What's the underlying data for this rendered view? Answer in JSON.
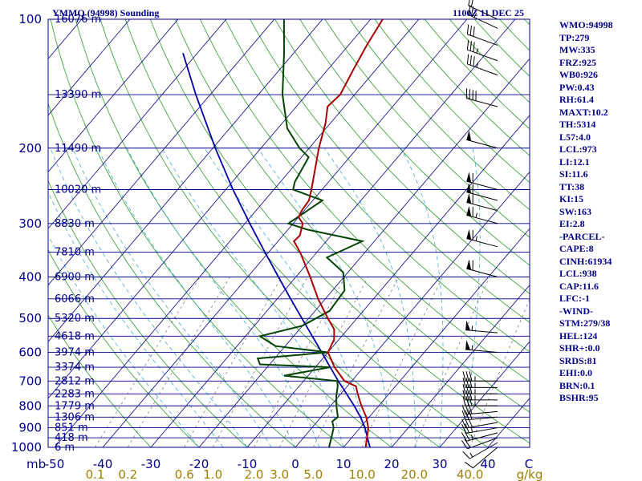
{
  "header": {
    "station": "YMMQ (94998) Sounding",
    "time": "1100Z 11 DEC 25"
  },
  "indices": [
    "WMO:94998",
    "TP:279",
    "MW:335",
    "FRZ:925",
    "WB0:926",
    "PW:0.43",
    "RH:61.4",
    "MAXT:10.2",
    "TH:5314",
    "L57:4.0",
    "LCL:973",
    "LI:12.1",
    "SI:11.6",
    "TT:38",
    "KI:15",
    "SW:163",
    "EI:2.8",
    "-PARCEL-",
    "CAPE:8",
    "CINH:61934",
    "LCL:938",
    "CAP:11.6",
    "LFC:-1",
    "-WIND-",
    "STM:279/38",
    "HEL:124",
    "SHR+:0.0",
    "SRDS:81",
    "EHI:0.0",
    "BRN:0.1",
    "BSHR:95"
  ],
  "colors": {
    "temperature": "#aa0000",
    "dewpoint": "#004400",
    "parcel": "#0000aa",
    "isobar": "#00008b",
    "isotherm": "#00008b",
    "dry_adiabat": "#2a9d2a",
    "moist_adiabat": "#44aadd",
    "mixing_ratio": "#808080",
    "wind": "#000000"
  },
  "chart_data": {
    "type": "line",
    "subtype": "skew-T log-P sounding",
    "pressure_axis_label": "mb",
    "temperature_axis_unit": "C",
    "mixing_ratio_unit": "g/kg",
    "pressure_levels": [
      100,
      200,
      300,
      400,
      500,
      600,
      700,
      800,
      900,
      1000
    ],
    "pressure_labels": [
      "100",
      "200",
      "300",
      "400",
      "500",
      "600",
      "700",
      "800",
      "900",
      "1000"
    ],
    "pressure_range": [
      100,
      1000
    ],
    "temperature_ticks": [
      -50,
      -40,
      -30,
      -20,
      -10,
      0,
      10,
      20,
      30,
      40
    ],
    "temperature_labels": [
      "-50",
      "-40",
      "-30",
      "-20",
      "-10",
      "0",
      "10",
      "20",
      "30",
      "40"
    ],
    "temperature_end_label": "C",
    "mixing_ratio_ticks": [
      0.1,
      0.2,
      0.6,
      1.0,
      2.0,
      3.0,
      5.0,
      10.0,
      20.0,
      40.0
    ],
    "mixing_ratio_labels": [
      "0.1",
      "0.2",
      "0.6",
      "1.0",
      "2.0",
      "3.0",
      "5.0",
      "10.0",
      "20.0",
      "40.0"
    ],
    "height_labels": [
      {
        "p": 100,
        "label": "16076 m"
      },
      {
        "p": 150,
        "label": "13390 m"
      },
      {
        "p": 200,
        "label": "11490 m"
      },
      {
        "p": 250,
        "label": "10020 m"
      },
      {
        "p": 300,
        "label": "8830 m"
      },
      {
        "p": 350,
        "label": "7810 m"
      },
      {
        "p": 400,
        "label": "6900 m"
      },
      {
        "p": 450,
        "label": "6066 m"
      },
      {
        "p": 500,
        "label": "5320 m"
      },
      {
        "p": 550,
        "label": "4618 m"
      },
      {
        "p": 600,
        "label": "3974 m"
      },
      {
        "p": 650,
        "label": "3374 m"
      },
      {
        "p": 700,
        "label": "2812 m"
      },
      {
        "p": 750,
        "label": "2283 m"
      },
      {
        "p": 800,
        "label": "1779 m"
      },
      {
        "p": 850,
        "label": "1306 m"
      },
      {
        "p": 900,
        "label": "851 m"
      },
      {
        "p": 950,
        "label": "418 m"
      },
      {
        "p": 1000,
        "label": "6 m"
      }
    ],
    "temperature_profile": [
      [
        1000,
        14.6
      ],
      [
        950,
        13.2
      ],
      [
        900,
        11.7
      ],
      [
        850,
        9.4
      ],
      [
        800,
        6.4
      ],
      [
        750,
        3.5
      ],
      [
        720,
        1.8
      ],
      [
        700,
        -1.5
      ],
      [
        650,
        -6.0
      ],
      [
        600,
        -10.0
      ],
      [
        580,
        -10.5
      ],
      [
        560,
        -11.0
      ],
      [
        530,
        -12.8
      ],
      [
        500,
        -16.0
      ],
      [
        450,
        -21.5
      ],
      [
        400,
        -27.0
      ],
      [
        350,
        -33.5
      ],
      [
        330,
        -36.7
      ],
      [
        320,
        -36.5
      ],
      [
        300,
        -38.0
      ],
      [
        290,
        -40.0
      ],
      [
        280,
        -40.5
      ],
      [
        265,
        -40.8
      ],
      [
        250,
        -42.2
      ],
      [
        200,
        -48.0
      ],
      [
        175,
        -51.0
      ],
      [
        160,
        -53.5
      ],
      [
        150,
        -53.0
      ],
      [
        130,
        -54.8
      ],
      [
        115,
        -56.2
      ],
      [
        100,
        -57.5
      ]
    ],
    "dewpoint_profile": [
      [
        1000,
        7.0
      ],
      [
        950,
        5.8
      ],
      [
        900,
        4.5
      ],
      [
        870,
        3.1
      ],
      [
        850,
        3.5
      ],
      [
        800,
        1.2
      ],
      [
        760,
        -0.5
      ],
      [
        720,
        -2.0
      ],
      [
        700,
        -3.0
      ],
      [
        680,
        -15.0
      ],
      [
        650,
        -7.0
      ],
      [
        640,
        -22.0
      ],
      [
        620,
        -23.5
      ],
      [
        600,
        -10.0
      ],
      [
        580,
        -22.0
      ],
      [
        550,
        -27.0
      ],
      [
        520,
        -20.0
      ],
      [
        480,
        -17.0
      ],
      [
        430,
        -17.5
      ],
      [
        390,
        -21.0
      ],
      [
        360,
        -27.0
      ],
      [
        350,
        -25.5
      ],
      [
        330,
        -22.5
      ],
      [
        310,
        -36.0
      ],
      [
        300,
        -41.0
      ],
      [
        265,
        -38.0
      ],
      [
        250,
        -46.0
      ],
      [
        240,
        -47.0
      ],
      [
        210,
        -48.5
      ],
      [
        200,
        -52.0
      ],
      [
        180,
        -58.0
      ],
      [
        150,
        -65.0
      ],
      [
        120,
        -72.0
      ],
      [
        100,
        -78.0
      ]
    ],
    "parcel_profile": [
      [
        1000,
        15.5
      ],
      [
        950,
        13.3
      ],
      [
        900,
        11.0
      ],
      [
        850,
        8.2
      ],
      [
        800,
        4.9
      ],
      [
        750,
        1.2
      ],
      [
        700,
        -2.8
      ],
      [
        650,
        -6.9
      ],
      [
        600,
        -11.3
      ],
      [
        550,
        -16.1
      ],
      [
        500,
        -21.4
      ],
      [
        450,
        -27.2
      ],
      [
        400,
        -33.6
      ],
      [
        350,
        -40.8
      ],
      [
        300,
        -49.0
      ],
      [
        250,
        -58.5
      ],
      [
        200,
        -69.5
      ],
      [
        150,
        -83.0
      ],
      [
        120,
        -93.0
      ]
    ],
    "wind_barbs": [
      {
        "p": 1000,
        "dir": 230,
        "spd": 10
      },
      {
        "p": 975,
        "dir": 240,
        "spd": 15
      },
      {
        "p": 950,
        "dir": 250,
        "spd": 20
      },
      {
        "p": 925,
        "dir": 255,
        "spd": 25
      },
      {
        "p": 900,
        "dir": 260,
        "spd": 25
      },
      {
        "p": 875,
        "dir": 260,
        "spd": 30
      },
      {
        "p": 850,
        "dir": 265,
        "spd": 30
      },
      {
        "p": 825,
        "dir": 265,
        "spd": 30
      },
      {
        "p": 800,
        "dir": 270,
        "spd": 35
      },
      {
        "p": 775,
        "dir": 270,
        "spd": 35
      },
      {
        "p": 750,
        "dir": 270,
        "spd": 35
      },
      {
        "p": 725,
        "dir": 270,
        "spd": 35
      },
      {
        "p": 700,
        "dir": 270,
        "spd": 35
      },
      {
        "p": 600,
        "dir": 275,
        "spd": 55
      },
      {
        "p": 540,
        "dir": 275,
        "spd": 55
      },
      {
        "p": 400,
        "dir": 285,
        "spd": 60
      },
      {
        "p": 340,
        "dir": 285,
        "spd": 65
      },
      {
        "p": 300,
        "dir": 285,
        "spd": 65
      },
      {
        "p": 280,
        "dir": 285,
        "spd": 60
      },
      {
        "p": 265,
        "dir": 285,
        "spd": 60
      },
      {
        "p": 250,
        "dir": 285,
        "spd": 60
      },
      {
        "p": 200,
        "dir": 285,
        "spd": 50
      },
      {
        "p": 160,
        "dir": 285,
        "spd": 40
      },
      {
        "p": 135,
        "dir": 290,
        "spd": 35
      },
      {
        "p": 125,
        "dir": 290,
        "spd": 35
      },
      {
        "p": 115,
        "dir": 290,
        "spd": 30
      },
      {
        "p": 105,
        "dir": 295,
        "spd": 25
      },
      {
        "p": 100,
        "dir": 295,
        "spd": 20
      }
    ]
  }
}
